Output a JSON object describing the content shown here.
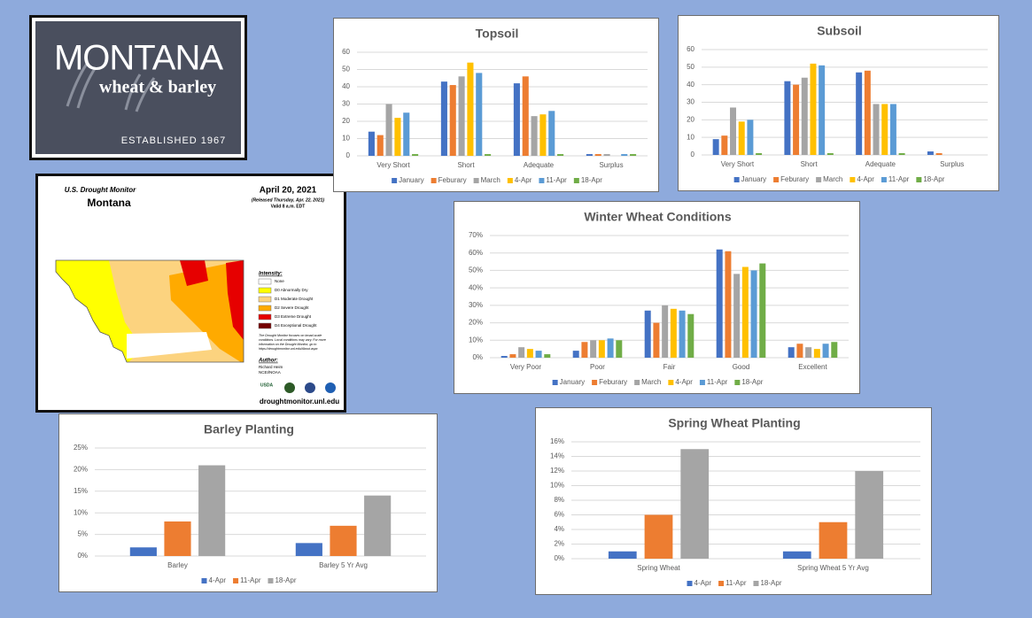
{
  "logo": {
    "name": "MONTANA",
    "tagline": "wheat & barley",
    "established": "ESTABLISHED 1967"
  },
  "drought_map": {
    "title": "U.S. Drought Monitor",
    "state": "Montana",
    "date": "April 20, 2021",
    "released": "(Released Thursday, Apr. 22, 2021)",
    "valid": "Valid 8 a.m. EDT",
    "intensity_title": "Intensity:",
    "legend": [
      "None",
      "D0 Abnormally Dry",
      "D1 Moderate Drought",
      "D2 Severe Drought",
      "D3 Extreme Drought",
      "D4 Exceptional Drought"
    ],
    "note": [
      "The Drought Monitor focuses on broad-scale",
      "conditions. Local conditions may vary. For more",
      "information on the Drought Monitor, go to",
      "https://droughtmonitor.unl.edu/About.aspx"
    ],
    "author_title": "Author:",
    "author": [
      "Richard Heim",
      "NCEI/NOAA"
    ],
    "agency": "USDA",
    "url": "droughtmonitor.unl.edu"
  },
  "chart_data": [
    {
      "type": "bar",
      "title": "Topsoil",
      "categories": [
        "Very Short",
        "Short",
        "Adequate",
        "Surplus"
      ],
      "series": [
        {
          "name": "January",
          "color": "#4472c4",
          "values": [
            14,
            43,
            42,
            1
          ]
        },
        {
          "name": "Feburary",
          "color": "#ed7d31",
          "values": [
            12,
            41,
            46,
            1
          ]
        },
        {
          "name": "March",
          "color": "#a5a5a5",
          "values": [
            30,
            46,
            23,
            1
          ]
        },
        {
          "name": "4-Apr",
          "color": "#ffc000",
          "values": [
            22,
            54,
            24,
            0
          ]
        },
        {
          "name": "11-Apr",
          "color": "#5b9bd5",
          "values": [
            25,
            48,
            26,
            1
          ]
        },
        {
          "name": "18-Apr",
          "color": "#70ad47",
          "values": [
            1,
            1,
            1,
            1
          ]
        }
      ],
      "ylim": [
        0,
        60
      ],
      "yticks": [
        0,
        10,
        20,
        30,
        40,
        50,
        60
      ],
      "grid": true
    },
    {
      "type": "bar",
      "title": "Subsoil",
      "categories": [
        "Very Short",
        "Short",
        "Adequate",
        "Surplus"
      ],
      "series": [
        {
          "name": "January",
          "color": "#4472c4",
          "values": [
            9,
            42,
            47,
            2
          ]
        },
        {
          "name": "Feburary",
          "color": "#ed7d31",
          "values": [
            11,
            40,
            48,
            1
          ]
        },
        {
          "name": "March",
          "color": "#a5a5a5",
          "values": [
            27,
            44,
            29,
            0
          ]
        },
        {
          "name": "4-Apr",
          "color": "#ffc000",
          "values": [
            19,
            52,
            29,
            0
          ]
        },
        {
          "name": "11-Apr",
          "color": "#5b9bd5",
          "values": [
            20,
            51,
            29,
            0
          ]
        },
        {
          "name": "18-Apr",
          "color": "#70ad47",
          "values": [
            1,
            1,
            1,
            0
          ]
        }
      ],
      "ylim": [
        0,
        60
      ],
      "yticks": [
        0,
        10,
        20,
        30,
        40,
        50,
        60
      ],
      "grid": true
    },
    {
      "type": "bar",
      "title": "Winter Wheat Conditions",
      "categories": [
        "Very Poor",
        "Poor",
        "Fair",
        "Good",
        "Excellent"
      ],
      "series": [
        {
          "name": "January",
          "color": "#4472c4",
          "values": [
            1,
            4,
            27,
            62,
            6
          ]
        },
        {
          "name": "Feburary",
          "color": "#ed7d31",
          "values": [
            2,
            9,
            20,
            61,
            8
          ]
        },
        {
          "name": "March",
          "color": "#a5a5a5",
          "values": [
            6,
            10,
            30,
            48,
            6
          ]
        },
        {
          "name": "4-Apr",
          "color": "#ffc000",
          "values": [
            5,
            10,
            28,
            52,
            5
          ]
        },
        {
          "name": "11-Apr",
          "color": "#5b9bd5",
          "values": [
            4,
            11,
            27,
            50,
            8
          ]
        },
        {
          "name": "18-Apr",
          "color": "#70ad47",
          "values": [
            2,
            10,
            25,
            54,
            9
          ]
        }
      ],
      "ylim": [
        0,
        70
      ],
      "yticks": [
        {
          "value": 0,
          "label": "0%"
        },
        {
          "value": 10,
          "label": "10%"
        },
        {
          "value": 20,
          "label": "20%"
        },
        {
          "value": 30,
          "label": "30%"
        },
        {
          "value": 40,
          "label": "40%"
        },
        {
          "value": 50,
          "label": "50%"
        },
        {
          "value": 60,
          "label": "60%"
        },
        {
          "value": 70,
          "label": "70%"
        }
      ],
      "grid": true
    },
    {
      "type": "bar",
      "title": "Barley Planting",
      "categories": [
        "Barley",
        "Barley 5 Yr Avg"
      ],
      "series": [
        {
          "name": "4-Apr",
          "color": "#4472c4",
          "values": [
            2,
            3
          ]
        },
        {
          "name": "11-Apr",
          "color": "#ed7d31",
          "values": [
            8,
            7
          ]
        },
        {
          "name": "18-Apr",
          "color": "#a5a5a5",
          "values": [
            21,
            14
          ]
        }
      ],
      "ylim": [
        0,
        25
      ],
      "yticks": [
        {
          "value": 0,
          "label": "0%"
        },
        {
          "value": 5,
          "label": "5%"
        },
        {
          "value": 10,
          "label": "10%"
        },
        {
          "value": 15,
          "label": "15%"
        },
        {
          "value": 20,
          "label": "20%"
        },
        {
          "value": 25,
          "label": "25%"
        }
      ],
      "grid": true
    },
    {
      "type": "bar",
      "title": "Spring Wheat Planting",
      "categories": [
        "Spring Wheat",
        "Spring Wheat 5 Yr Avg"
      ],
      "series": [
        {
          "name": "4-Apr",
          "color": "#4472c4",
          "values": [
            1,
            1
          ]
        },
        {
          "name": "11-Apr",
          "color": "#ed7d31",
          "values": [
            6,
            5
          ]
        },
        {
          "name": "18-Apr",
          "color": "#a5a5a5",
          "values": [
            15,
            12
          ]
        }
      ],
      "ylim": [
        0,
        16
      ],
      "yticks": [
        {
          "value": 0,
          "label": "0%"
        },
        {
          "value": 2,
          "label": "2%"
        },
        {
          "value": 4,
          "label": "4%"
        },
        {
          "value": 6,
          "label": "6%"
        },
        {
          "value": 8,
          "label": "8%"
        },
        {
          "value": 10,
          "label": "10%"
        },
        {
          "value": 12,
          "label": "12%"
        },
        {
          "value": 14,
          "label": "14%"
        },
        {
          "value": 16,
          "label": "16%"
        }
      ],
      "grid": true
    }
  ]
}
